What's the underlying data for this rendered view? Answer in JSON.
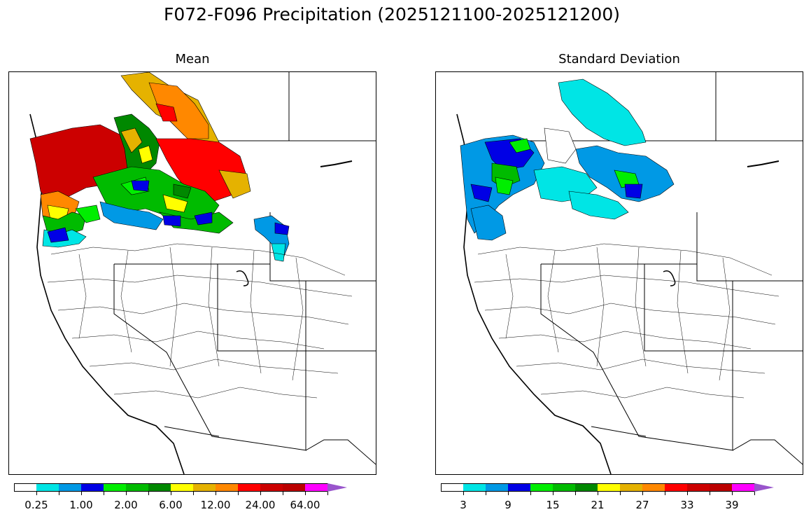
{
  "figure": {
    "title": "F072-F096 Precipitation (2025121100-2025121200)"
  },
  "panels": [
    {
      "title": "Mean",
      "colorbar": {
        "colors": [
          "#ffffff",
          "#00e5e5",
          "#0099e5",
          "#0000e5",
          "#00ee00",
          "#00bb00",
          "#008800",
          "#ffff00",
          "#e5b200",
          "#ff8800",
          "#ff0000",
          "#cc0000",
          "#bb0000",
          "#ff00ff",
          "#9955cc"
        ],
        "tick_labels": [
          "0.25",
          "1.00",
          "2.00",
          "6.00",
          "12.00",
          "24.00",
          "64.00"
        ],
        "extend": "max"
      }
    },
    {
      "title": "Standard Deviation",
      "colorbar": {
        "colors": [
          "#ffffff",
          "#00e5e5",
          "#0099e5",
          "#0000e5",
          "#00ee00",
          "#00bb00",
          "#008800",
          "#ffff00",
          "#e5b200",
          "#ff8800",
          "#ff0000",
          "#cc0000",
          "#bb0000",
          "#ff00ff",
          "#9955cc"
        ],
        "tick_labels": [
          "3",
          "9",
          "15",
          "21",
          "27",
          "33",
          "39"
        ],
        "extend": "max"
      }
    }
  ]
}
